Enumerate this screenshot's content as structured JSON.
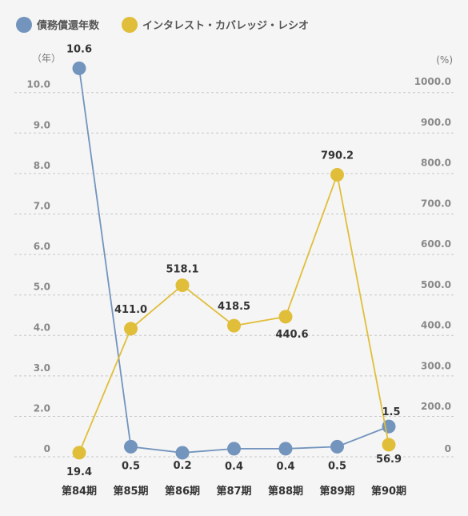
{
  "chart_data": {
    "type": "line",
    "categories": [
      "第84期",
      "第85期",
      "第86期",
      "第87期",
      "第88期",
      "第89期",
      "第90期"
    ],
    "series": [
      {
        "name": "債務償還年数",
        "axis": "left",
        "color": "#7394bd",
        "values": [
          10.6,
          0.5,
          0.2,
          0.4,
          0.4,
          0.5,
          1.5
        ],
        "labels": [
          "10.6",
          "0.5",
          "0.2",
          "0.4",
          "0.4",
          "0.5",
          "1.5"
        ]
      },
      {
        "name": "インタレスト・カバレッジ・レシオ",
        "axis": "right",
        "color": "#e0be3a",
        "values": [
          19.4,
          411.0,
          518.1,
          418.5,
          440.6,
          790.2,
          56.9
        ],
        "labels": [
          "19.4",
          "411.0",
          "518.1",
          "418.5",
          "440.6",
          "790.2",
          "56.9"
        ]
      }
    ],
    "left_axis": {
      "unit": "（年）",
      "ticks": [
        0,
        2.0,
        3.0,
        4.0,
        5.0,
        6.0,
        7.0,
        8.0,
        9.0,
        10.0
      ],
      "tick_labels": [
        "0",
        "2.0",
        "3.0",
        "4.0",
        "5.0",
        "6.0",
        "7.0",
        "8.0",
        "9.0",
        "10.0"
      ]
    },
    "right_axis": {
      "unit": "(%)",
      "ticks": [
        0,
        200,
        300,
        400,
        500,
        600,
        700,
        800,
        900,
        1000
      ],
      "tick_labels": [
        "0",
        "200.0",
        "300.0",
        "400.0",
        "500.0",
        "600.0",
        "700.0",
        "800.0",
        "900.0",
        "1000.0"
      ]
    },
    "grid": "horizontal-dashed",
    "legend_position": "top-left"
  }
}
